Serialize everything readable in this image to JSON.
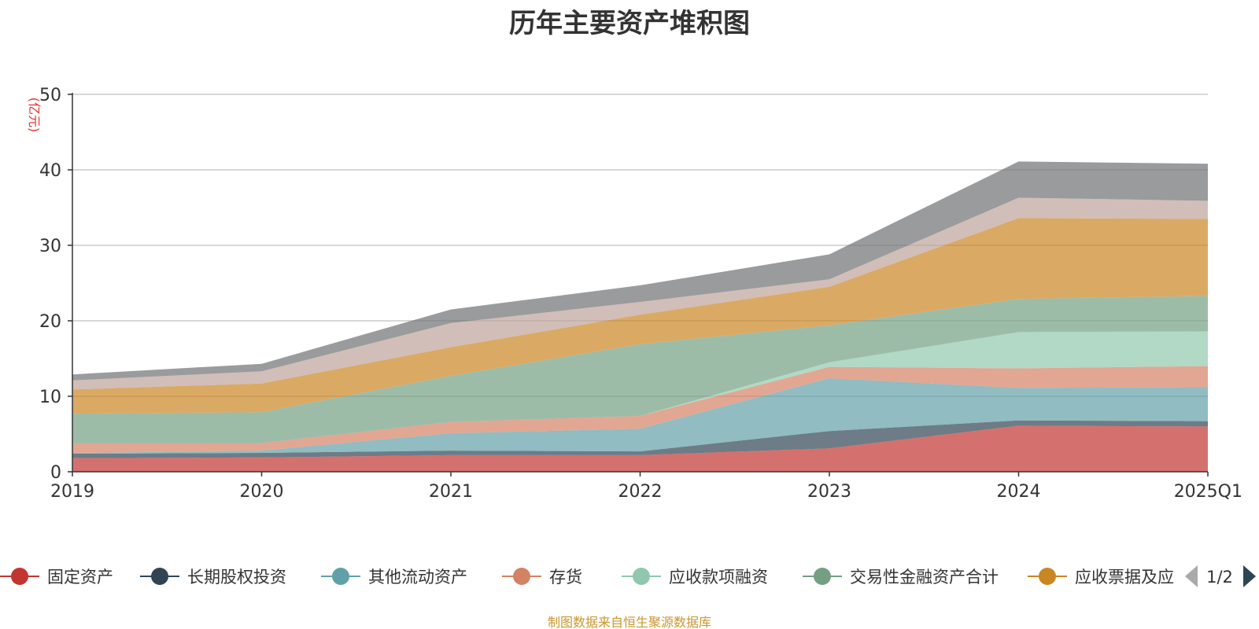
{
  "title": "历年主要资产堆积图",
  "source_note": "制图数据来自恒生聚源数据库",
  "legend_page": "1/2",
  "icons": {
    "prev": "triangle-left-icon",
    "next": "triangle-right-icon"
  },
  "chart_data": {
    "type": "area",
    "stacked": true,
    "title": "历年主要资产堆积图",
    "ylabel": "(亿元)",
    "xlabel": "",
    "x": [
      "2019",
      "2020",
      "2021",
      "2022",
      "2023",
      "2024",
      "2025Q1"
    ],
    "ylim": [
      0,
      50
    ],
    "yticks": [
      0,
      10,
      20,
      30,
      40,
      50
    ],
    "grid": true,
    "legend_position": "bottom",
    "series": [
      {
        "name": "固定资产",
        "color": "#c23531",
        "values": [
          1.8,
          1.9,
          2.2,
          2.2,
          3.1,
          6.1,
          6.0
        ]
      },
      {
        "name": "长期股权投资",
        "color": "#2f4554",
        "values": [
          0.6,
          0.6,
          0.6,
          0.5,
          2.3,
          0.7,
          0.7
        ]
      },
      {
        "name": "其他流动资产",
        "color": "#61a0a8",
        "values": [
          0.1,
          0.3,
          2.3,
          3.0,
          7.0,
          4.3,
          4.5
        ]
      },
      {
        "name": "存货",
        "color": "#d48265",
        "values": [
          1.3,
          1.0,
          1.5,
          1.7,
          1.5,
          2.6,
          2.8
        ]
      },
      {
        "name": "应收款项融资",
        "color": "#91c7ae",
        "values": [
          0.0,
          0.0,
          0.0,
          0.0,
          0.6,
          4.8,
          4.6
        ]
      },
      {
        "name": "交易性金融资产合计",
        "color": "#749f83",
        "values": [
          3.9,
          4.1,
          6.1,
          9.5,
          4.9,
          4.4,
          4.7
        ]
      },
      {
        "name": "应收票据及应",
        "color": "#ca8622",
        "values": [
          3.2,
          3.8,
          3.8,
          3.9,
          5.1,
          10.7,
          10.2
        ]
      },
      {
        "name": "",
        "color": "#bda29a",
        "values": [
          1.2,
          1.6,
          3.2,
          1.7,
          1.0,
          2.7,
          2.4
        ]
      },
      {
        "name": "",
        "color": "#6e7074",
        "values": [
          0.8,
          1.0,
          1.8,
          2.2,
          3.3,
          4.8,
          4.9
        ]
      }
    ]
  }
}
